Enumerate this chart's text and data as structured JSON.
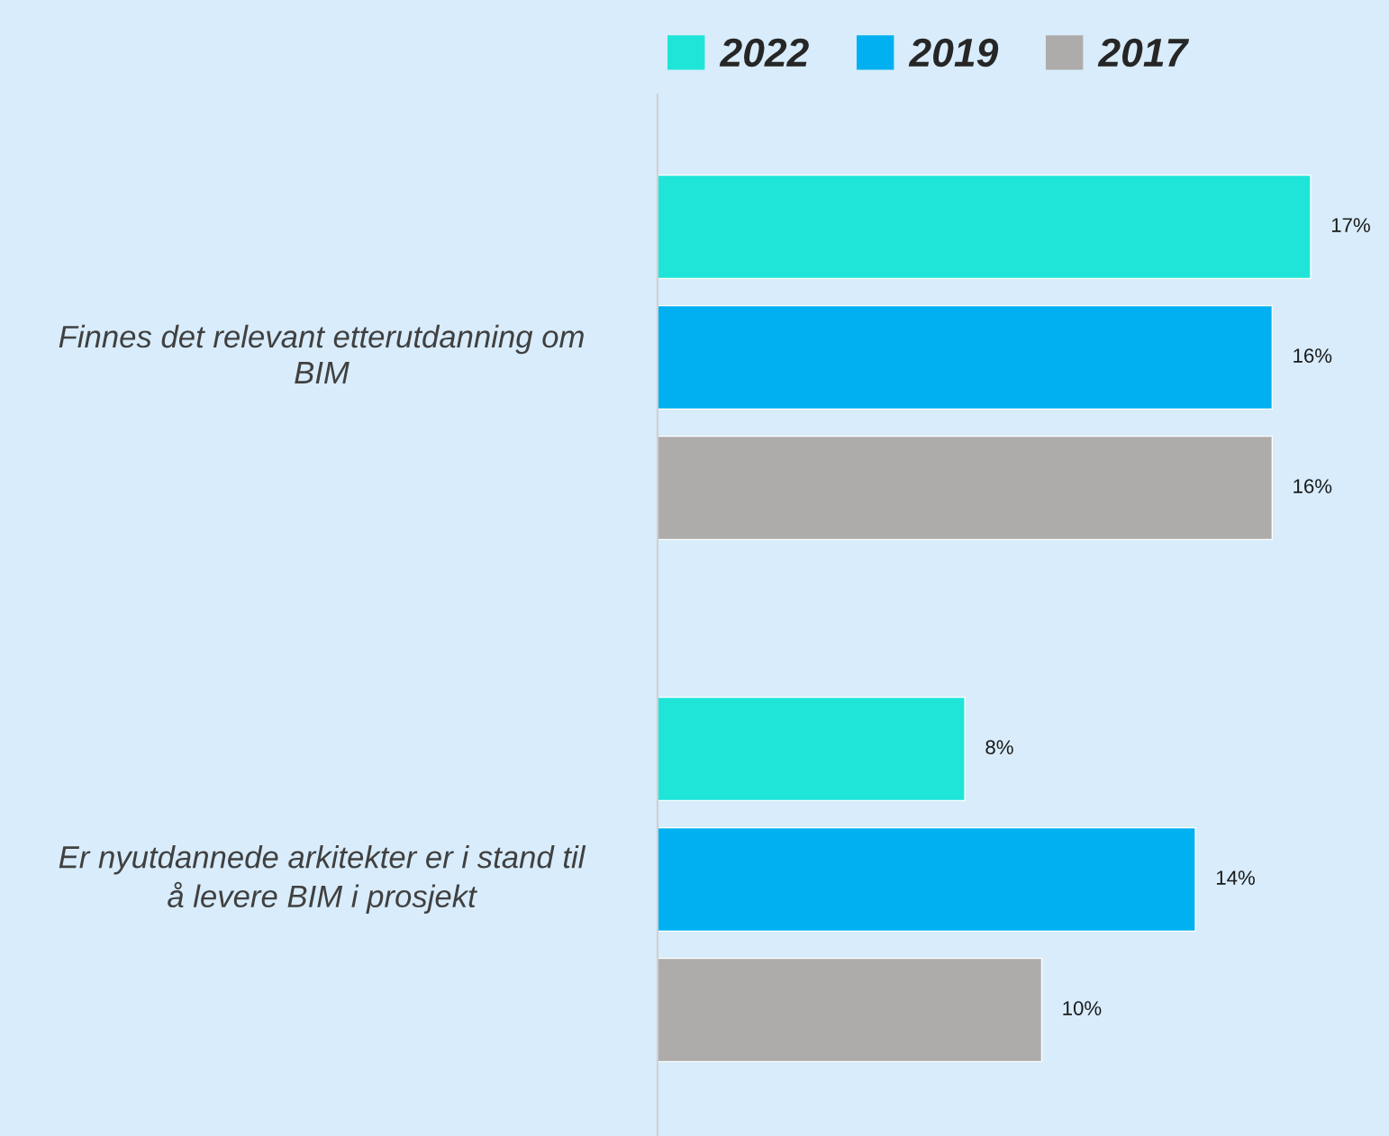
{
  "chart_data": {
    "type": "bar",
    "orientation": "horizontal",
    "categories": [
      "Finnes det relevant etterutdanning om\nBIM",
      "Er nyutdannede arkitekter er i stand til\nå levere BIM i prosjekt"
    ],
    "series": [
      {
        "name": "2022",
        "color": "#1fe5d9",
        "values": [
          17,
          8
        ],
        "value_labels": [
          "17%",
          "8%"
        ]
      },
      {
        "name": "2019",
        "color": "#00b0f0",
        "values": [
          16,
          14
        ],
        "value_labels": [
          "16%",
          "14%"
        ]
      },
      {
        "name": "2017",
        "color": "#aeabab",
        "values": [
          16,
          10
        ],
        "value_labels": [
          "16%",
          "10%"
        ]
      }
    ],
    "tick_labels": "y",
    "legend": "top"
  }
}
